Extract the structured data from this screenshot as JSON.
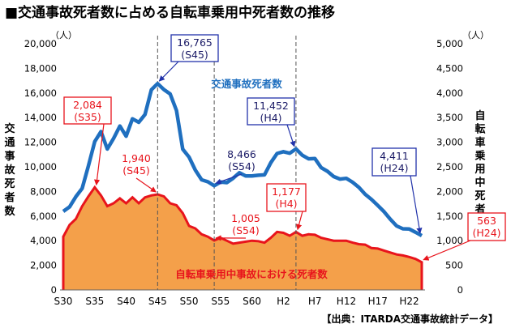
{
  "chart_data": {
    "type": "line",
    "title": "■交通事故死者数に占める自転車乗用中死者数の推移",
    "source": "【出典：ITARDA交通事故統計データ】",
    "left_axis": {
      "label": "交通事故死者数",
      "unit": "（人）",
      "range": [
        0,
        20000
      ],
      "ticks": [
        "0",
        "2,000",
        "4,000",
        "6,000",
        "8,000",
        "10,000",
        "12,000",
        "14,000",
        "16,000",
        "18,000",
        "20,000"
      ]
    },
    "right_axis": {
      "label": "自転車乗用中死者数",
      "unit": "（人）",
      "range": [
        0,
        5000
      ],
      "ticks": [
        "0",
        "500",
        "1,000",
        "1,500",
        "2,000",
        "2,500",
        "3,000",
        "3,500",
        "4,000",
        "4,500",
        "5,000"
      ]
    },
    "x_ticks": [
      "S30",
      "S35",
      "S40",
      "S45",
      "S50",
      "S55",
      "S60",
      "H2",
      "H7",
      "H12",
      "H17",
      "H22"
    ],
    "years": [
      "S30",
      "S31",
      "S32",
      "S33",
      "S34",
      "S35",
      "S36",
      "S37",
      "S38",
      "S39",
      "S40",
      "S41",
      "S42",
      "S43",
      "S44",
      "S45",
      "S46",
      "S47",
      "S48",
      "S49",
      "S50",
      "S51",
      "S52",
      "S53",
      "S54",
      "S55",
      "S56",
      "S57",
      "S58",
      "S59",
      "S60",
      "S61",
      "S62",
      "S63",
      "H1",
      "H2",
      "H3",
      "H4",
      "H5",
      "H6",
      "H7",
      "H8",
      "H9",
      "H10",
      "H11",
      "H12",
      "H13",
      "H14",
      "H15",
      "H16",
      "H17",
      "H18",
      "H19",
      "H20",
      "H21",
      "H22",
      "H23",
      "H24"
    ],
    "series": [
      {
        "name": "交通事故死者数",
        "axis": "left",
        "color": "#1f6fbf",
        "values": [
          6379,
          6751,
          7575,
          8248,
          10079,
          12055,
          12865,
          11445,
          12301,
          13318,
          12484,
          13904,
          13618,
          14256,
          16257,
          16765,
          16278,
          15918,
          14574,
          11432,
          10792,
          9734,
          8945,
          8783,
          8466,
          8760,
          8719,
          9073,
          9520,
          9262,
          9261,
          9317,
          9347,
          10344,
          11086,
          11227,
          11105,
          11452,
          10942,
          10649,
          10679,
          9942,
          9640,
          9211,
          9006,
          9066,
          8747,
          8326,
          7768,
          7358,
          6871,
          6352,
          5744,
          5197,
          4968,
          4948,
          4691,
          4411
        ]
      },
      {
        "name": "自転車乗用中事故における死者数",
        "axis": "right",
        "color": "#f4a04a",
        "line_color": "#e8141c",
        "values": [
          1080,
          1320,
          1440,
          1700,
          1900,
          2084,
          1920,
          1700,
          1760,
          1860,
          1760,
          1880,
          1760,
          1880,
          1920,
          1940,
          1900,
          1760,
          1720,
          1560,
          1300,
          1250,
          1130,
          1080,
          1005,
          1060,
          1000,
          940,
          960,
          980,
          1000,
          990,
          960,
          1060,
          1180,
          1160,
          1100,
          1177,
          1100,
          1130,
          1120,
          1060,
          1030,
          1000,
          1000,
          1000,
          960,
          930,
          920,
          850,
          840,
          800,
          760,
          720,
          700,
          670,
          630,
          563
        ]
      }
    ],
    "annotations": [
      {
        "value": "16,765",
        "year": "(S45)",
        "series": "交通事故死者数"
      },
      {
        "value": "8,466",
        "year": "(S54)",
        "series": "交通事故死者数"
      },
      {
        "value": "11,452",
        "year": "(H4)",
        "series": "交通事故死者数"
      },
      {
        "value": "4,411",
        "year": "(H24)",
        "series": "交通事故死者数"
      },
      {
        "value": "2,084",
        "year": "(S35)",
        "series": "自転車乗用中事故における死者数"
      },
      {
        "value": "1,940",
        "year": "(S45)",
        "series": "自転車乗用中事故における死者数"
      },
      {
        "value": "1,005",
        "year": "(S54)",
        "series": "自転車乗用中事故における死者数"
      },
      {
        "value": "1,177",
        "year": "(H4)",
        "series": "自転車乗用中事故における死者数"
      },
      {
        "value": "563",
        "year": "(H24)",
        "series": "自転車乗用中事故における死者数"
      }
    ]
  }
}
